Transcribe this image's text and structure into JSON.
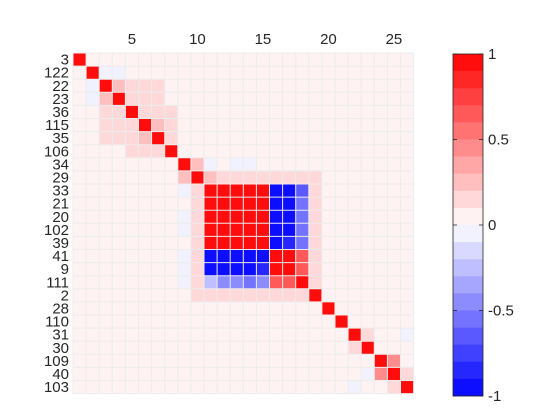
{
  "chart_data": {
    "type": "heatmap",
    "title": "",
    "xlabel": "",
    "ylabel": "",
    "x_ticks": [
      5,
      10,
      15,
      20,
      25
    ],
    "row_labels": [
      "3",
      "122",
      "22",
      "23",
      "36",
      "115",
      "35",
      "106",
      "34",
      "29",
      "33",
      "21",
      "20",
      "102",
      "39",
      "41",
      "9",
      "111",
      "2",
      "28",
      "110",
      "31",
      "30",
      "109",
      "40",
      "103"
    ],
    "grid": true,
    "colorbar": {
      "placement": "right",
      "min": -1,
      "max": 1,
      "ticks": [
        1,
        0.5,
        0,
        -0.5,
        -1
      ],
      "tick_labels": [
        "1",
        "0.5",
        "0",
        "-0.5",
        "-1"
      ],
      "levels": 20
    },
    "values": [
      [
        1,
        0,
        0,
        0,
        0,
        0,
        0,
        0,
        0,
        0,
        0,
        0,
        0,
        0,
        0,
        0,
        0,
        0,
        0,
        0,
        0,
        0,
        0,
        0,
        0,
        0
      ],
      [
        0,
        1,
        -0.1,
        -0.1,
        0,
        0,
        0,
        0,
        0,
        0,
        0,
        0,
        0,
        0,
        0,
        0,
        0,
        0,
        0,
        0,
        0,
        0,
        0,
        0,
        0,
        0
      ],
      [
        0,
        -0.1,
        1,
        0.2,
        0.1,
        0.1,
        0.1,
        0,
        0,
        0,
        0,
        0,
        0,
        0,
        0,
        0,
        0,
        0,
        0,
        0,
        0,
        0,
        0,
        0,
        0,
        0
      ],
      [
        0,
        -0.1,
        0.2,
        1,
        0.1,
        0.1,
        0.1,
        0,
        0,
        0,
        0,
        0,
        0,
        0,
        0,
        0,
        0,
        0,
        0,
        0,
        0,
        0,
        0,
        0,
        0,
        0
      ],
      [
        0,
        0,
        0.1,
        0.1,
        1,
        0.1,
        0.1,
        0.1,
        0,
        0,
        0,
        0,
        0,
        0,
        0,
        0,
        0,
        0,
        0,
        0,
        0,
        0,
        0,
        0,
        0,
        0
      ],
      [
        0,
        0,
        0.1,
        0.1,
        0.1,
        1,
        0.2,
        0.1,
        0,
        0,
        0,
        0,
        0,
        0,
        0,
        0,
        0,
        0,
        0,
        0,
        0,
        0,
        0,
        0,
        0,
        0
      ],
      [
        0,
        0,
        0.1,
        0.1,
        0.1,
        0.2,
        1,
        0.1,
        0,
        0,
        0,
        0,
        0,
        0,
        0,
        0,
        0,
        0,
        0,
        0,
        0,
        0,
        0,
        0,
        0,
        0
      ],
      [
        0,
        0,
        0,
        0,
        0.1,
        0.1,
        0.1,
        1,
        0,
        0,
        0,
        0,
        0,
        0,
        0,
        0,
        0,
        0,
        0,
        0,
        0,
        0,
        0,
        0,
        0,
        0
      ],
      [
        0,
        0,
        0,
        0,
        0,
        0,
        0,
        0,
        1,
        0.2,
        -0.1,
        0,
        -0.1,
        -0.1,
        0,
        0,
        0,
        0,
        0,
        0,
        0,
        0,
        0,
        0,
        0,
        0
      ],
      [
        0,
        0,
        0,
        0,
        0,
        0,
        0,
        0,
        0.2,
        1,
        0.2,
        0.1,
        0.1,
        0.1,
        0.1,
        0.1,
        0.1,
        0.1,
        0.1,
        0,
        0,
        0,
        0,
        0,
        0,
        0
      ],
      [
        0,
        0,
        0,
        0,
        0,
        0,
        0,
        0,
        -0.1,
        0.1,
        1,
        1,
        1,
        1,
        1,
        -0.95,
        -0.95,
        -0.7,
        0.1,
        0,
        0,
        0,
        0,
        0,
        0,
        0
      ],
      [
        0,
        0,
        0,
        0,
        0,
        0,
        0,
        0,
        0,
        0.1,
        1,
        1,
        1,
        1,
        1,
        -0.95,
        -0.9,
        -0.6,
        0.1,
        0,
        0,
        0,
        0,
        0,
        0,
        0
      ],
      [
        0,
        0,
        0,
        0,
        0,
        0,
        0,
        0,
        -0.1,
        0.1,
        1,
        1,
        1,
        1,
        1,
        -0.95,
        -0.9,
        -0.6,
        0.1,
        0,
        0,
        0,
        0,
        0,
        0,
        0
      ],
      [
        0,
        0,
        0,
        0,
        0,
        0,
        0,
        0,
        -0.1,
        0.1,
        1,
        1,
        1,
        1,
        1,
        -1,
        -0.9,
        -0.6,
        0.1,
        0,
        0,
        0,
        0,
        0,
        0,
        0
      ],
      [
        0,
        0,
        0,
        0,
        0,
        0,
        0,
        0,
        0,
        0.1,
        1,
        1,
        1,
        1,
        1,
        -0.95,
        -0.85,
        -0.55,
        0.1,
        0,
        0,
        0,
        0,
        0,
        0,
        0
      ],
      [
        0,
        0,
        0,
        0,
        0,
        0,
        0,
        0,
        -0.1,
        0.1,
        -0.95,
        -0.95,
        -1,
        -1,
        -0.95,
        1,
        0.9,
        0.6,
        0.1,
        0,
        0,
        0,
        0,
        0,
        0,
        0
      ],
      [
        0,
        0,
        0,
        0,
        0,
        0,
        0,
        0,
        -0.1,
        0.1,
        -0.9,
        -0.9,
        -0.9,
        -0.9,
        -0.85,
        0.9,
        1,
        0.65,
        0.1,
        0,
        0,
        0,
        0,
        0,
        0,
        0
      ],
      [
        0,
        0,
        0,
        0,
        0,
        0,
        0,
        0,
        -0.1,
        0.1,
        -0.3,
        -0.5,
        -0.5,
        -0.55,
        -0.5,
        0.6,
        0.65,
        1,
        0.1,
        0,
        0,
        0,
        0,
        0,
        0,
        0
      ],
      [
        0,
        0,
        0,
        0,
        0,
        0,
        0,
        0,
        0,
        0.1,
        0.1,
        0.1,
        0.1,
        0.1,
        0.1,
        0.1,
        0.1,
        0.1,
        1,
        0,
        0,
        0,
        0,
        0,
        0,
        0
      ],
      [
        0,
        0,
        0,
        0,
        0,
        0,
        0,
        0,
        0,
        0,
        0,
        0,
        0,
        0,
        0,
        0,
        0,
        0,
        0,
        1,
        0,
        0,
        0,
        0,
        0,
        0
      ],
      [
        0,
        0,
        0,
        0,
        0,
        0,
        0,
        0,
        0,
        0,
        0,
        0,
        0,
        0,
        0,
        0,
        0,
        0,
        0,
        0,
        1,
        0,
        0,
        0,
        0,
        0
      ],
      [
        0,
        0,
        0,
        0,
        0,
        0,
        0,
        0,
        0,
        0,
        0,
        0,
        0,
        0,
        0,
        0,
        0,
        0,
        0,
        0,
        0,
        1,
        0.1,
        0,
        0,
        -0.1
      ],
      [
        0,
        0,
        0,
        0,
        0,
        0,
        0,
        0,
        0,
        0,
        0,
        0,
        0,
        0,
        0,
        0,
        0,
        0,
        0,
        0,
        0,
        0.1,
        1,
        0,
        0,
        0
      ],
      [
        0,
        0,
        0,
        0,
        0,
        0,
        0,
        0,
        0,
        0,
        0,
        0,
        0,
        0,
        0,
        0,
        0,
        0,
        0,
        0,
        0,
        0,
        0,
        1,
        0.4,
        0
      ],
      [
        0,
        0,
        0,
        0,
        0,
        0,
        0,
        0,
        0,
        0,
        0,
        0,
        0,
        0,
        0,
        0,
        0,
        0,
        0,
        0,
        0,
        0,
        -0.1,
        0.4,
        1,
        0.1
      ],
      [
        0,
        0,
        0,
        0,
        0,
        0,
        0,
        0,
        0,
        0,
        0,
        0,
        0,
        0,
        0,
        0,
        0,
        0,
        0,
        0,
        0,
        -0.1,
        0,
        0,
        0.1,
        1
      ]
    ]
  }
}
